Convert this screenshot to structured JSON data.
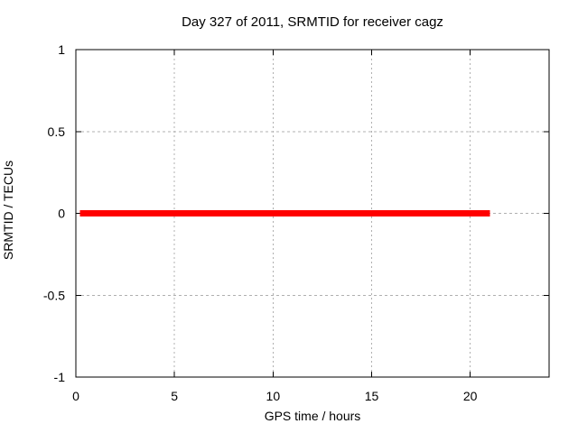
{
  "figure": {
    "background_color": "#ffffff",
    "text_color": "#000000"
  },
  "chart_data": {
    "type": "line",
    "title": "Day 327 of 2011, SRMTID for receiver cagz",
    "xlabel": "GPS time / hours",
    "ylabel": "SRMTID / TECUs",
    "xlim": [
      0,
      24
    ],
    "ylim": [
      -1,
      1
    ],
    "xticks": [
      0,
      5,
      10,
      15,
      20
    ],
    "xtick_labels": [
      "0",
      "5",
      "10",
      "15",
      "20"
    ],
    "yticks": [
      -1,
      -0.5,
      0,
      0.5,
      1
    ],
    "ytick_labels": [
      "-1",
      "-0.5",
      "0",
      "0.5",
      "1"
    ],
    "grid": true,
    "grid_style": "dashed",
    "grid_color": "#b0b0b0",
    "axis_color": "#000000",
    "legend": "none",
    "series": [
      {
        "name": "SRMTID",
        "color": "#ff0000",
        "line_width": 7,
        "x": [
          0.2,
          21.0
        ],
        "y": [
          0,
          0
        ]
      }
    ]
  }
}
